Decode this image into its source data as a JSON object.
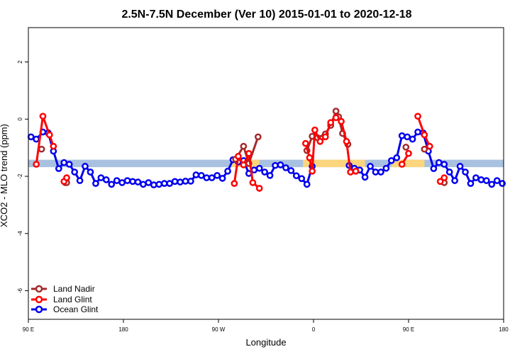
{
  "chart_data": {
    "type": "line",
    "title": "2.5N-7.5N December (Ver 10)   2015-01-01 to 2020-12-18",
    "xlabel": "Longitude",
    "ylabel": "XCO2 - MLO trend (ppm)",
    "xlim": [
      0,
      360
    ],
    "ylim": [
      -7,
      3.2
    ],
    "x_ticks": [
      {
        "value": 0,
        "label": "90 E"
      },
      {
        "value": 72,
        "label": "180"
      },
      {
        "value": 144,
        "label": "90 W"
      },
      {
        "value": 216,
        "label": "0"
      },
      {
        "value": 288,
        "label": "90 E"
      },
      {
        "value": 360,
        "label": "180"
      }
    ],
    "y_ticks": [
      {
        "value": -6,
        "label": "-6"
      },
      {
        "value": -4,
        "label": "-4"
      },
      {
        "value": -2,
        "label": "-2"
      },
      {
        "value": 0,
        "label": "0"
      },
      {
        "value": 2,
        "label": "2"
      }
    ],
    "grid": false,
    "legend_position": "bottom-left",
    "band": {
      "center": -1.55,
      "half_width": 0.13,
      "color": "#a9c1e0"
    },
    "highlights": [
      {
        "x_start": 153,
        "x_end": 175,
        "center": -1.55,
        "half_width": 0.13,
        "color": "#fcd57e"
      },
      {
        "x_start": 208,
        "x_end": 255,
        "center": -1.55,
        "half_width": 0.13,
        "color": "#fcd57e"
      },
      {
        "x_start": 275,
        "x_end": 300,
        "center": -1.55,
        "half_width": 0.13,
        "color": "#fcd57e"
      }
    ],
    "series": [
      {
        "name": "Ocean Glint",
        "color": "#0000ee",
        "segments": [
          [
            [
              2,
              -0.62
            ],
            [
              6,
              -0.7
            ],
            [
              11,
              -0.45
            ],
            [
              15,
              -0.48
            ],
            [
              19,
              -1.12
            ],
            [
              23,
              -1.73
            ],
            [
              27,
              -1.52
            ],
            [
              31,
              -1.58
            ],
            [
              35,
              -1.85
            ],
            [
              39,
              -2.15
            ],
            [
              43,
              -1.65
            ],
            [
              47,
              -1.85
            ],
            [
              51,
              -2.25
            ],
            [
              55,
              -2.05
            ],
            [
              59,
              -2.12
            ],
            [
              63,
              -2.28
            ],
            [
              67,
              -2.15
            ],
            [
              71,
              -2.22
            ],
            [
              75,
              -2.15
            ],
            [
              79,
              -2.18
            ],
            [
              83,
              -2.2
            ],
            [
              87,
              -2.28
            ],
            [
              91,
              -2.22
            ],
            [
              95,
              -2.3
            ],
            [
              99,
              -2.28
            ],
            [
              103,
              -2.25
            ],
            [
              107,
              -2.25
            ],
            [
              111,
              -2.18
            ],
            [
              115,
              -2.2
            ],
            [
              119,
              -2.17
            ],
            [
              123,
              -2.17
            ],
            [
              127,
              -1.95
            ],
            [
              131,
              -1.97
            ],
            [
              135,
              -2.05
            ],
            [
              139,
              -2.05
            ],
            [
              143,
              -1.97
            ],
            [
              147,
              -2.07
            ],
            [
              151,
              -1.82
            ],
            [
              155,
              -1.42
            ],
            [
              159,
              -1.5
            ],
            [
              163,
              -1.45
            ],
            [
              167,
              -1.9
            ],
            [
              171,
              -1.78
            ],
            [
              175,
              -1.72
            ],
            [
              179,
              -1.85
            ],
            [
              183,
              -1.97
            ],
            [
              187,
              -1.62
            ],
            [
              191,
              -1.6
            ],
            [
              195,
              -1.7
            ],
            [
              199,
              -1.8
            ],
            [
              203,
              -1.98
            ],
            [
              207,
              -2.08
            ],
            [
              211,
              -2.28
            ],
            [
              215,
              -1.65
            ]
          ],
          [
            [
              243,
              -1.62
            ],
            [
              247,
              -1.72
            ],
            [
              251,
              -1.78
            ],
            [
              255,
              -2.03
            ],
            [
              259,
              -1.65
            ],
            [
              263,
              -1.85
            ],
            [
              267,
              -1.85
            ],
            [
              271,
              -1.72
            ],
            [
              275,
              -1.45
            ],
            [
              279,
              -1.35
            ],
            [
              283,
              -0.58
            ],
            [
              287,
              -0.62
            ],
            [
              291,
              -0.7
            ],
            [
              295,
              -0.45
            ],
            [
              299,
              -0.48
            ],
            [
              303,
              -1.12
            ],
            [
              307,
              -1.73
            ],
            [
              311,
              -1.52
            ],
            [
              315,
              -1.58
            ],
            [
              319,
              -1.85
            ],
            [
              323,
              -2.15
            ],
            [
              327,
              -1.65
            ],
            [
              331,
              -1.85
            ],
            [
              335,
              -2.25
            ],
            [
              339,
              -2.05
            ],
            [
              343,
              -2.12
            ],
            [
              347,
              -2.15
            ],
            [
              351,
              -2.28
            ],
            [
              355,
              -2.15
            ],
            [
              359,
              -2.25
            ]
          ]
        ]
      },
      {
        "name": "Land Nadir",
        "color": "#a52a2a",
        "segments": [
          [
            [
              10,
              -1.05
            ]
          ],
          [
            [
              28,
              -2.22
            ],
            [
              29,
              -2.22
            ]
          ],
          [
            [
              157,
              -1.4
            ],
            [
              163,
              -0.95
            ],
            [
              167,
              -1.55
            ],
            [
              174,
              -0.62
            ]
          ],
          [
            [
              211,
              -1.1
            ],
            [
              215,
              -0.6
            ],
            [
              219,
              -0.65
            ],
            [
              225,
              -0.52
            ],
            [
              229,
              -0.22
            ],
            [
              233,
              0.28
            ],
            [
              235,
              0.08
            ],
            [
              238,
              -0.5
            ],
            [
              242,
              -0.88
            ]
          ],
          [
            [
              286,
              -0.98
            ]
          ],
          [
            [
              300,
              -1.05
            ]
          ],
          [
            [
              315,
              -2.22
            ]
          ]
        ]
      },
      {
        "name": "Land Glint",
        "color": "#ff0000",
        "segments": [
          [
            [
              6,
              -1.58
            ],
            [
              11,
              0.1
            ],
            [
              16,
              -0.55
            ],
            [
              19,
              -0.95
            ]
          ],
          [
            [
              27,
              -2.18
            ],
            [
              29,
              -2.05
            ]
          ],
          [
            [
              156,
              -2.25
            ],
            [
              159,
              -1.3
            ],
            [
              163,
              -1.6
            ],
            [
              167,
              -1.2
            ],
            [
              170,
              -2.22
            ],
            [
              175,
              -2.42
            ]
          ],
          [
            [
              210,
              -0.85
            ],
            [
              213,
              -1.35
            ],
            [
              215,
              -1.82
            ],
            [
              217,
              -0.38
            ],
            [
              221,
              -0.78
            ],
            [
              225,
              -0.62
            ],
            [
              229,
              -0.12
            ],
            [
              233,
              0.05
            ],
            [
              237,
              -0.08
            ],
            [
              241,
              -0.78
            ],
            [
              244,
              -1.85
            ],
            [
              248,
              -1.82
            ]
          ],
          [
            [
              283,
              -1.58
            ],
            [
              288,
              -1.2
            ]
          ],
          [
            [
              295,
              0.1
            ],
            [
              300,
              -0.55
            ],
            [
              304,
              -0.95
            ]
          ],
          [
            [
              312,
              -2.18
            ],
            [
              315,
              -2.05
            ]
          ]
        ]
      }
    ]
  }
}
